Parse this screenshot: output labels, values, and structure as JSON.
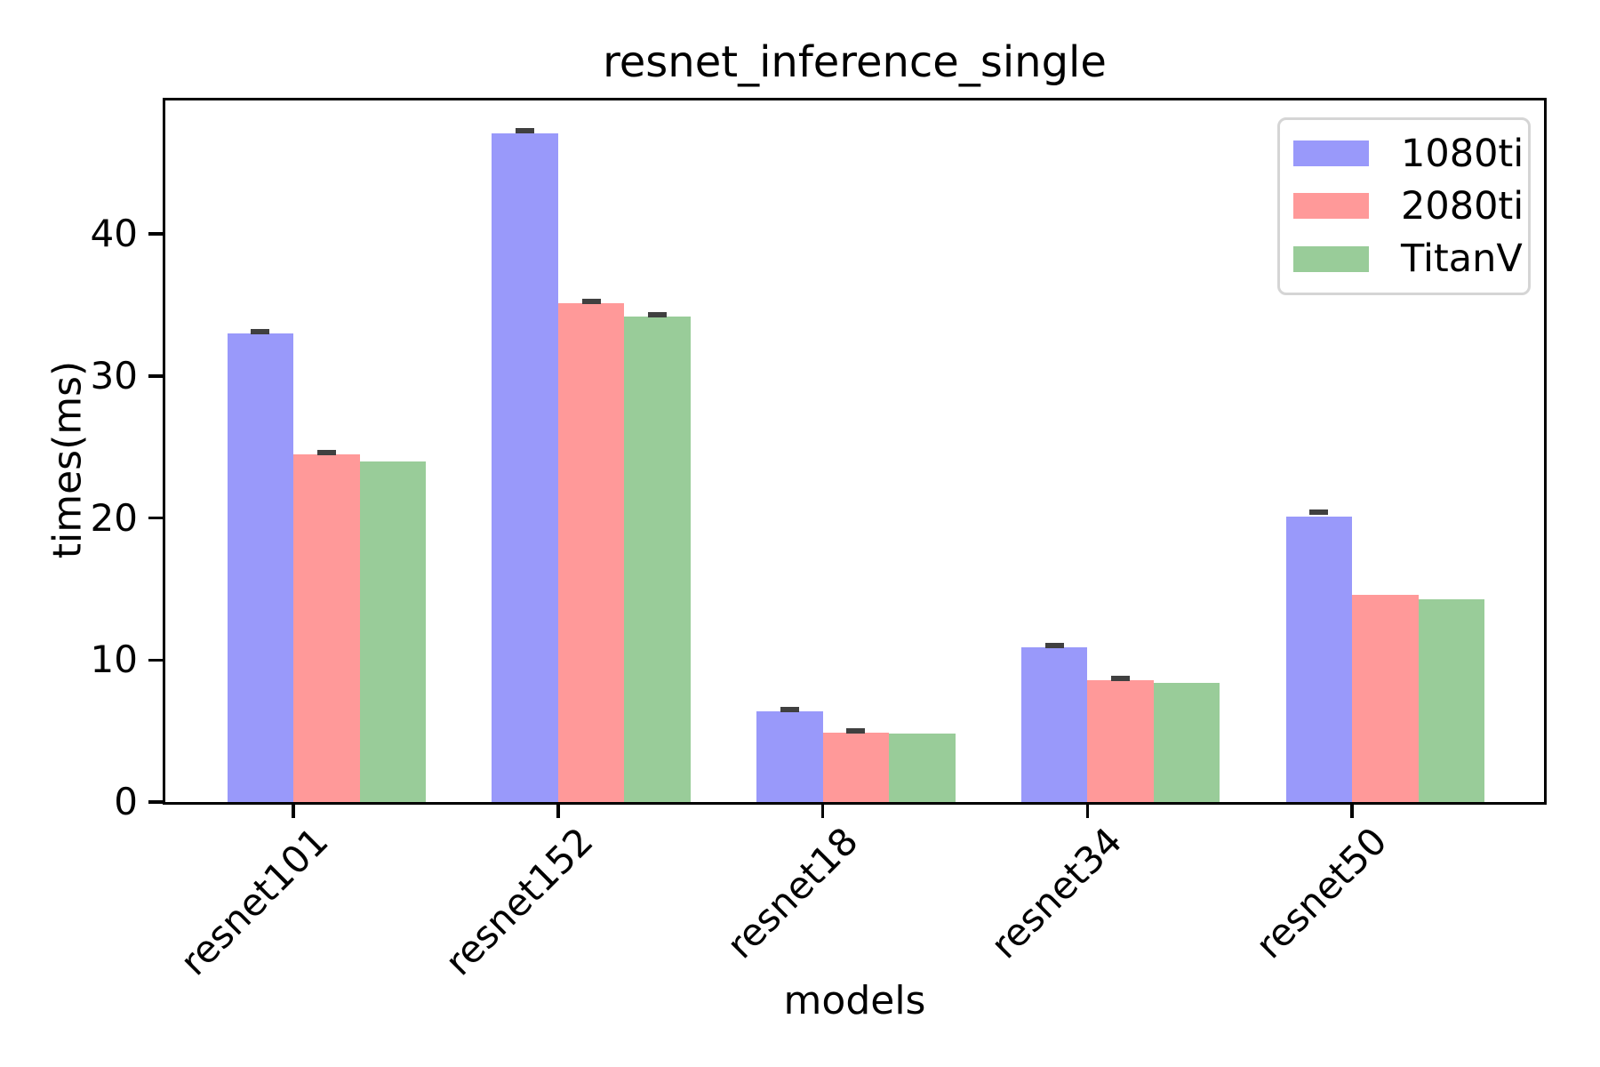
{
  "chart_data": {
    "type": "bar",
    "title": "resnet_inference_single",
    "xlabel": "models",
    "ylabel": "times(ms)",
    "categories": [
      "resnet101",
      "resnet152",
      "resnet18",
      "resnet34",
      "resnet50"
    ],
    "series": [
      {
        "name": "1080ti",
        "color": "#9999fa",
        "values": [
          33.0,
          47.1,
          6.4,
          10.9,
          20.1
        ],
        "errors": [
          0.15,
          0.2,
          0.1,
          0.1,
          0.3
        ]
      },
      {
        "name": "2080ti",
        "color": "#ff9999",
        "values": [
          24.5,
          35.1,
          4.9,
          8.6,
          14.6
        ],
        "errors": [
          0.12,
          0.15,
          0.08,
          0.1,
          0
        ]
      },
      {
        "name": "TitanV",
        "color": "#99cc99",
        "values": [
          24.0,
          34.2,
          4.8,
          8.4,
          14.3
        ],
        "errors": [
          0,
          0.12,
          0,
          0,
          0
        ]
      }
    ],
    "yticks": [
      0,
      10,
      20,
      30,
      40
    ],
    "ylim": [
      0,
      49.4
    ],
    "grid": false,
    "legend_position": "upper right",
    "error_bar_color": "#404040",
    "axis_color": "#000000",
    "background_color": "#ffffff"
  }
}
